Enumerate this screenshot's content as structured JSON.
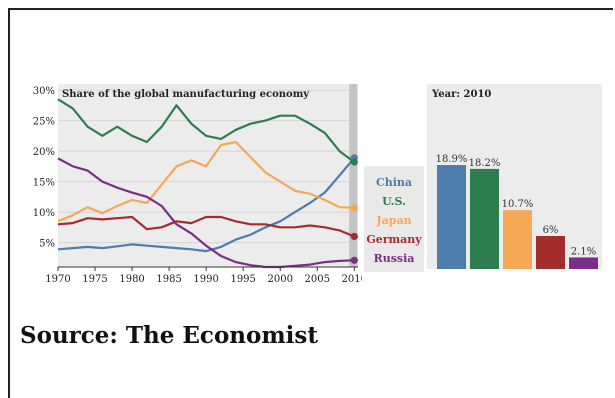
{
  "source_text": "Source: The Economist",
  "chart_data": [
    {
      "type": "line",
      "title": "Share of the global manufacturing economy",
      "xlabel": "",
      "ylabel": "",
      "x": [
        1970,
        1972,
        1974,
        1976,
        1978,
        1980,
        1982,
        1984,
        1986,
        1988,
        1990,
        1992,
        1994,
        1996,
        1998,
        2000,
        2002,
        2004,
        2006,
        2008,
        2010
      ],
      "xticks": [
        1970,
        1975,
        1980,
        1985,
        1990,
        1995,
        2000,
        2005,
        2010
      ],
      "xtick_labels": [
        "1970",
        "1975",
        "1980",
        "1985",
        "1990",
        "1995",
        "2000",
        "2005",
        "2010"
      ],
      "yticks": [
        5,
        10,
        15,
        20,
        25,
        30
      ],
      "ytick_labels": [
        "5%",
        "10%",
        "15%",
        "20%",
        "25%",
        "30%"
      ],
      "xlim": [
        1970,
        2010.5
      ],
      "ylim": [
        1,
        31
      ],
      "grid": "horizontal",
      "legend_position": "right",
      "series": [
        {
          "name": "China",
          "color": "#4e7cad",
          "values": [
            3.9,
            4.1,
            4.3,
            4.1,
            4.4,
            4.7,
            4.5,
            4.3,
            4.1,
            3.9,
            3.6,
            4.3,
            5.5,
            6.3,
            7.5,
            8.5,
            10.0,
            11.5,
            13.2,
            16.0,
            18.9
          ]
        },
        {
          "name": "U.S.",
          "color": "#2e7d4f",
          "values": [
            28.5,
            27.0,
            24.0,
            22.5,
            24.0,
            22.5,
            21.5,
            24.0,
            27.5,
            24.5,
            22.5,
            22.0,
            23.5,
            24.5,
            25.0,
            25.8,
            25.8,
            24.5,
            23.0,
            20.0,
            18.2
          ]
        },
        {
          "name": "Japan",
          "color": "#f5a855",
          "values": [
            8.5,
            9.5,
            10.8,
            9.8,
            11.0,
            12.0,
            11.5,
            14.5,
            17.5,
            18.5,
            17.5,
            21.0,
            21.5,
            19.0,
            16.5,
            15.0,
            13.5,
            13.0,
            12.0,
            10.8,
            10.7
          ]
        },
        {
          "name": "Germany",
          "color": "#a32c2c",
          "values": [
            8.0,
            8.2,
            9.0,
            8.8,
            9.0,
            9.2,
            7.2,
            7.5,
            8.5,
            8.2,
            9.2,
            9.2,
            8.5,
            8.0,
            8.0,
            7.5,
            7.5,
            7.8,
            7.5,
            7.0,
            6.0
          ]
        },
        {
          "name": "Russia",
          "color": "#7b2d87",
          "values": [
            18.8,
            17.5,
            16.8,
            15.0,
            14.0,
            13.2,
            12.5,
            11.0,
            8.0,
            6.5,
            4.5,
            2.8,
            1.8,
            1.3,
            1.0,
            1.0,
            1.2,
            1.4,
            1.8,
            2.0,
            2.1
          ]
        }
      ]
    },
    {
      "type": "bar",
      "title": "Year: 2010",
      "categories": [
        "China",
        "U.S.",
        "Japan",
        "Germany",
        "Russia"
      ],
      "values": [
        18.9,
        18.2,
        10.7,
        6.0,
        2.1
      ],
      "value_labels": [
        "18.9%",
        "18.2%",
        "10.7%",
        "6%",
        "2.1%"
      ],
      "colors": [
        "#4e7cad",
        "#2e7d4f",
        "#f5a855",
        "#a32c2c",
        "#7b2d87"
      ],
      "ylim": [
        0,
        20
      ]
    }
  ]
}
